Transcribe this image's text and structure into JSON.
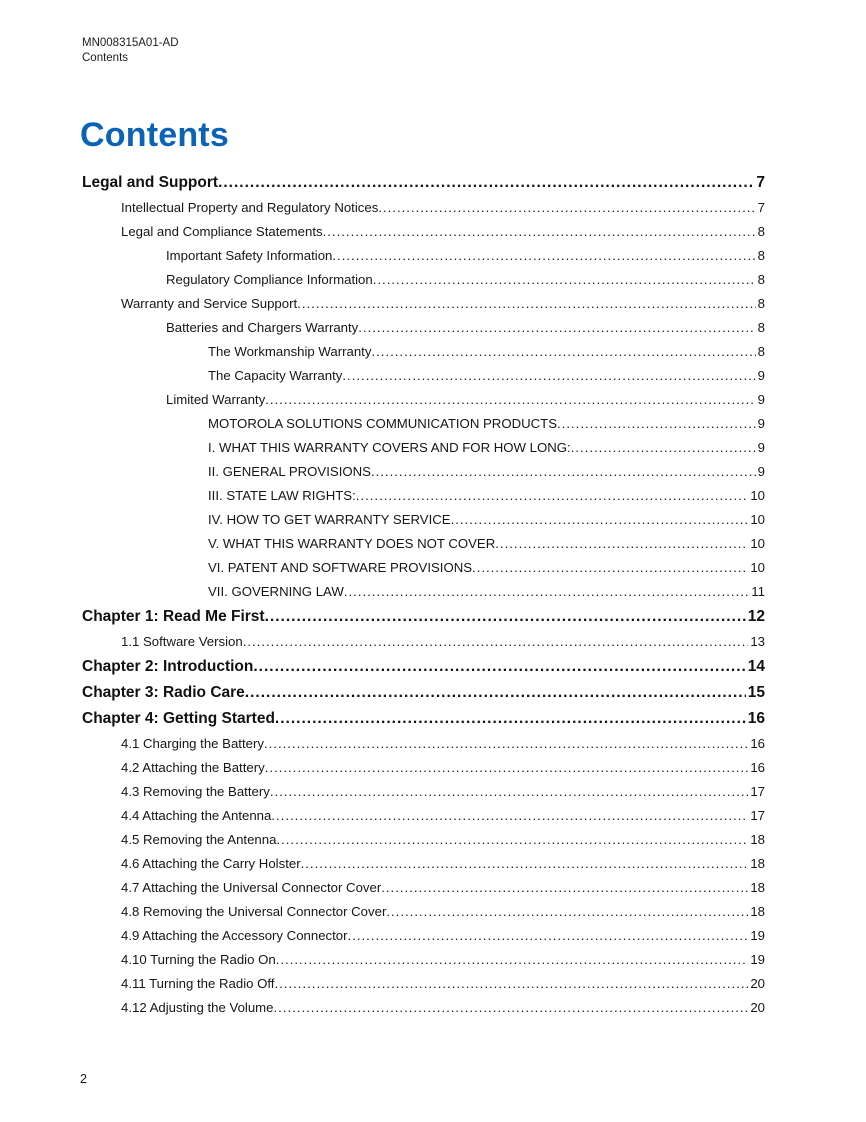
{
  "header": {
    "doc_id": "MN008315A01-AD",
    "section": "Contents"
  },
  "title": "Contents",
  "colors": {
    "accent": "#0a63b5",
    "ink": "#1a1a1a"
  },
  "toc": {
    "entries": [
      {
        "level": 0,
        "label": "Legal and Support",
        "page": "7"
      },
      {
        "level": 1,
        "label": "Intellectual Property and Regulatory Notices",
        "page": "7"
      },
      {
        "level": 1,
        "label": "Legal and Compliance Statements",
        "page": "8"
      },
      {
        "level": 2,
        "label": "Important Safety Information",
        "page": "8"
      },
      {
        "level": 2,
        "label": "Regulatory Compliance Information",
        "page": "8"
      },
      {
        "level": 1,
        "label": "Warranty and Service Support",
        "page": "8"
      },
      {
        "level": 2,
        "label": "Batteries and Chargers Warranty",
        "page": "8"
      },
      {
        "level": 3,
        "label": "The Workmanship Warranty",
        "page": "8"
      },
      {
        "level": 3,
        "label": "The Capacity Warranty",
        "page": "9"
      },
      {
        "level": 2,
        "label": "Limited Warranty",
        "page": "9"
      },
      {
        "level": 3,
        "label": "MOTOROLA SOLUTIONS COMMUNICATION PRODUCTS",
        "page": "9"
      },
      {
        "level": 3,
        "label": "I. WHAT THIS WARRANTY COVERS AND FOR HOW LONG:",
        "page": "9"
      },
      {
        "level": 3,
        "label": "II. GENERAL PROVISIONS",
        "page": "9"
      },
      {
        "level": 3,
        "label": "III. STATE LAW RIGHTS:",
        "page": "10"
      },
      {
        "level": 3,
        "label": "IV. HOW TO GET WARRANTY SERVICE",
        "page": "10"
      },
      {
        "level": 3,
        "label": "V. WHAT THIS WARRANTY DOES NOT COVER",
        "page": "10"
      },
      {
        "level": 3,
        "label": "VI. PATENT AND SOFTWARE PROVISIONS",
        "page": "10"
      },
      {
        "level": 3,
        "label": "VII. GOVERNING LAW",
        "page": "11"
      },
      {
        "level": 0,
        "label": "Chapter 1: Read Me First",
        "page": "12"
      },
      {
        "level": 1,
        "label": "1.1 Software Version",
        "page": "13"
      },
      {
        "level": 0,
        "label": "Chapter 2: Introduction",
        "page": "14"
      },
      {
        "level": 0,
        "label": "Chapter 3: Radio Care",
        "page": "15"
      },
      {
        "level": 0,
        "label": "Chapter 4: Getting Started",
        "page": "16"
      },
      {
        "level": 1,
        "label": "4.1 Charging the Battery",
        "page": "16"
      },
      {
        "level": 1,
        "label": "4.2 Attaching the Battery",
        "page": "16"
      },
      {
        "level": 1,
        "label": "4.3 Removing the Battery",
        "page": "17"
      },
      {
        "level": 1,
        "label": "4.4 Attaching the Antenna",
        "page": "17"
      },
      {
        "level": 1,
        "label": "4.5 Removing the Antenna",
        "page": "18"
      },
      {
        "level": 1,
        "label": "4.6 Attaching the Carry Holster",
        "page": "18"
      },
      {
        "level": 1,
        "label": "4.7 Attaching the Universal Connector Cover",
        "page": "18"
      },
      {
        "level": 1,
        "label": "4.8 Removing the Universal Connector Cover",
        "page": "18"
      },
      {
        "level": 1,
        "label": "4.9 Attaching the Accessory Connector",
        "page": "19"
      },
      {
        "level": 1,
        "label": "4.10 Turning the Radio On",
        "page": "19"
      },
      {
        "level": 1,
        "label": "4.11 Turning the Radio Off",
        "page": "20"
      },
      {
        "level": 1,
        "label": "4.12 Adjusting the Volume",
        "page": "20"
      }
    ]
  },
  "footer": {
    "page_number": "2"
  }
}
